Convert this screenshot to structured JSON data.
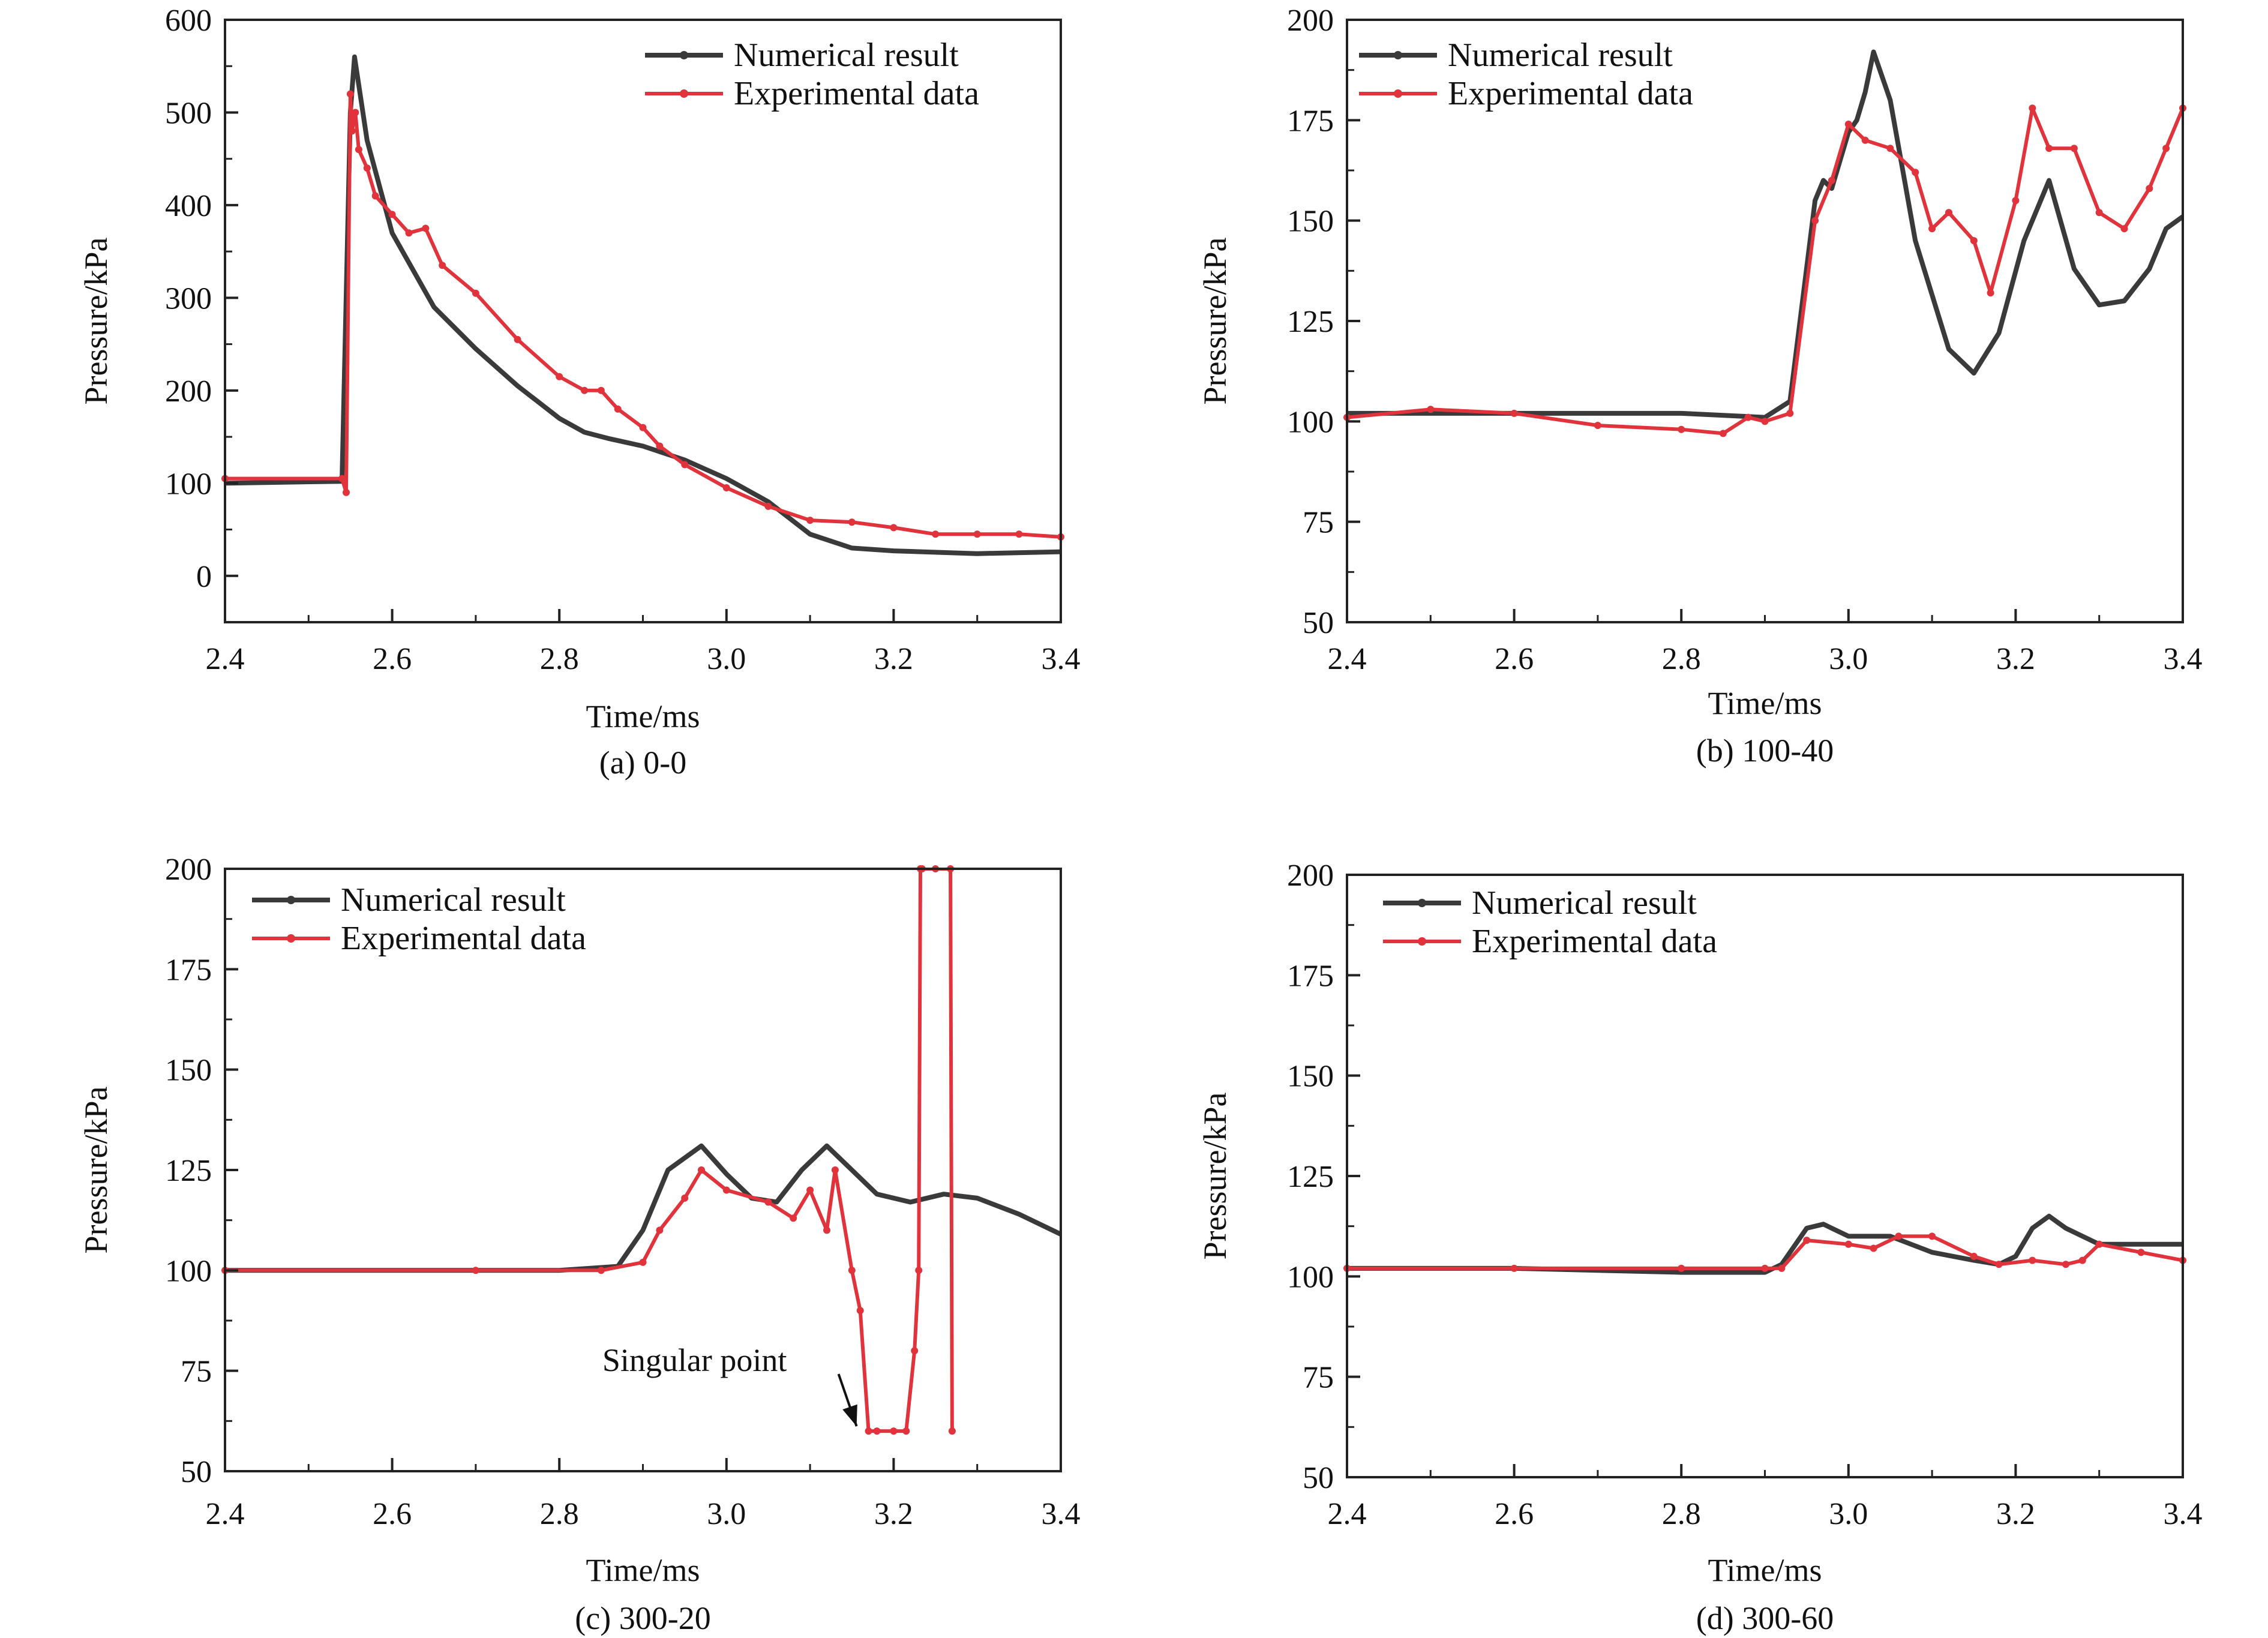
{
  "colors": {
    "numerical": "#3a3a3a",
    "experimental": "#e0333c",
    "axis": "#222222"
  },
  "chart_data": [
    {
      "type": "line",
      "caption": "(a) 0-0",
      "xlabel": "Time/ms",
      "ylabel": "Pressure/kPa",
      "xlim": [
        2.4,
        3.4
      ],
      "ylim": [
        -50,
        600
      ],
      "xticks": [
        2.4,
        2.6,
        2.8,
        3.0,
        3.2,
        3.4
      ],
      "yticks": [
        0,
        100,
        200,
        300,
        400,
        500,
        600
      ],
      "legend": "top-right",
      "series": [
        {
          "name": "Numerical result",
          "color": "numerical",
          "x": [
            2.4,
            2.54,
            2.55,
            2.555,
            2.57,
            2.6,
            2.65,
            2.7,
            2.75,
            2.8,
            2.83,
            2.86,
            2.9,
            2.95,
            3.0,
            3.05,
            3.1,
            3.15,
            3.2,
            3.3,
            3.4
          ],
          "y": [
            100,
            102,
            500,
            560,
            470,
            370,
            290,
            245,
            205,
            170,
            155,
            148,
            140,
            125,
            105,
            80,
            45,
            30,
            27,
            24,
            26
          ]
        },
        {
          "name": "Experimental data",
          "color": "experimental",
          "x": [
            2.4,
            2.54,
            2.545,
            2.55,
            2.552,
            2.556,
            2.56,
            2.57,
            2.58,
            2.6,
            2.62,
            2.64,
            2.66,
            2.7,
            2.75,
            2.8,
            2.83,
            2.85,
            2.87,
            2.9,
            2.92,
            2.95,
            3.0,
            3.05,
            3.1,
            3.15,
            3.2,
            3.25,
            3.3,
            3.35,
            3.4
          ],
          "y": [
            105,
            105,
            90,
            520,
            480,
            500,
            460,
            440,
            410,
            390,
            370,
            375,
            335,
            305,
            255,
            215,
            200,
            200,
            180,
            160,
            140,
            120,
            95,
            75,
            60,
            58,
            52,
            45,
            45,
            45,
            42
          ]
        }
      ]
    },
    {
      "type": "line",
      "caption": "(b) 100-40",
      "xlabel": "Time/ms",
      "ylabel": "Pressure/kPa",
      "xlim": [
        2.4,
        3.4
      ],
      "ylim": [
        50,
        200
      ],
      "xticks": [
        2.4,
        2.6,
        2.8,
        3.0,
        3.2,
        3.4
      ],
      "yticks": [
        50,
        75,
        100,
        125,
        150,
        175,
        200
      ],
      "legend": "top-left",
      "series": [
        {
          "name": "Numerical result",
          "color": "numerical",
          "x": [
            2.4,
            2.6,
            2.8,
            2.9,
            2.93,
            2.96,
            2.97,
            2.98,
            3.0,
            3.01,
            3.02,
            3.03,
            3.05,
            3.08,
            3.12,
            3.15,
            3.18,
            3.21,
            3.24,
            3.27,
            3.3,
            3.33,
            3.36,
            3.38,
            3.4
          ],
          "y": [
            102,
            102,
            102,
            101,
            105,
            155,
            160,
            158,
            172,
            175,
            182,
            192,
            180,
            145,
            118,
            112,
            122,
            145,
            160,
            138,
            129,
            130,
            138,
            148,
            151
          ]
        },
        {
          "name": "Experimental data",
          "color": "experimental",
          "x": [
            2.4,
            2.5,
            2.6,
            2.7,
            2.8,
            2.85,
            2.88,
            2.9,
            2.93,
            2.96,
            2.98,
            3.0,
            3.02,
            3.05,
            3.08,
            3.1,
            3.12,
            3.15,
            3.17,
            3.2,
            3.22,
            3.24,
            3.27,
            3.3,
            3.33,
            3.36,
            3.38,
            3.4
          ],
          "y": [
            101,
            103,
            102,
            99,
            98,
            97,
            101,
            100,
            102,
            150,
            160,
            174,
            170,
            168,
            162,
            148,
            152,
            145,
            132,
            155,
            178,
            168,
            168,
            152,
            148,
            158,
            168,
            178
          ]
        }
      ]
    },
    {
      "type": "line",
      "caption": "(c) 300-20",
      "xlabel": "Time/ms",
      "ylabel": "Pressure/kPa",
      "xlim": [
        2.4,
        3.4
      ],
      "ylim": [
        50,
        200
      ],
      "xticks": [
        2.4,
        2.6,
        2.8,
        3.0,
        3.2,
        3.4
      ],
      "yticks": [
        50,
        75,
        100,
        125,
        150,
        175,
        200
      ],
      "legend": "top-left",
      "annotation": {
        "text": "Singular point",
        "x": 3.17,
        "y": 60
      },
      "series": [
        {
          "name": "Numerical result",
          "color": "numerical",
          "x": [
            2.4,
            2.6,
            2.8,
            2.87,
            2.9,
            2.93,
            2.97,
            3.0,
            3.03,
            3.06,
            3.09,
            3.12,
            3.15,
            3.18,
            3.22,
            3.26,
            3.3,
            3.35,
            3.4
          ],
          "y": [
            100,
            100,
            100,
            101,
            110,
            125,
            131,
            124,
            118,
            117,
            125,
            131,
            125,
            119,
            117,
            119,
            118,
            114,
            109
          ]
        },
        {
          "name": "Experimental data",
          "color": "experimental",
          "x": [
            2.4,
            2.7,
            2.85,
            2.9,
            2.92,
            2.95,
            2.97,
            3.0,
            3.05,
            3.08,
            3.1,
            3.12,
            3.13,
            3.15,
            3.16,
            3.17,
            3.18,
            3.2,
            3.215,
            3.225,
            3.23,
            3.232,
            3.234,
            3.25,
            3.268,
            3.27
          ],
          "y": [
            100,
            100,
            100,
            102,
            110,
            118,
            125,
            120,
            117,
            113,
            120,
            110,
            125,
            100,
            90,
            60,
            60,
            60,
            60,
            80,
            100,
            200,
            200,
            200,
            200,
            60
          ]
        }
      ]
    },
    {
      "type": "line",
      "caption": "(d) 300-60",
      "xlabel": "Time/ms",
      "ylabel": "Pressure/kPa",
      "xlim": [
        2.4,
        3.4
      ],
      "ylim": [
        50,
        200
      ],
      "xticks": [
        2.4,
        2.6,
        2.8,
        3.0,
        3.2,
        3.4
      ],
      "yticks": [
        50,
        75,
        100,
        125,
        150,
        175,
        200
      ],
      "legend": "top-left",
      "series": [
        {
          "name": "Numerical result",
          "color": "numerical",
          "x": [
            2.4,
            2.6,
            2.8,
            2.9,
            2.92,
            2.95,
            2.97,
            3.0,
            3.05,
            3.1,
            3.15,
            3.18,
            3.2,
            3.22,
            3.24,
            3.26,
            3.3,
            3.35,
            3.4
          ],
          "y": [
            102,
            102,
            101,
            101,
            103,
            112,
            113,
            110,
            110,
            106,
            104,
            103,
            105,
            112,
            115,
            112,
            108,
            108,
            108
          ]
        },
        {
          "name": "Experimental data",
          "color": "experimental",
          "x": [
            2.4,
            2.6,
            2.8,
            2.9,
            2.92,
            2.95,
            3.0,
            3.03,
            3.06,
            3.1,
            3.15,
            3.18,
            3.22,
            3.26,
            3.28,
            3.3,
            3.35,
            3.4
          ],
          "y": [
            102,
            102,
            102,
            102,
            102,
            109,
            108,
            107,
            110,
            110,
            105,
            103,
            104,
            103,
            104,
            108,
            106,
            104
          ]
        }
      ]
    }
  ]
}
